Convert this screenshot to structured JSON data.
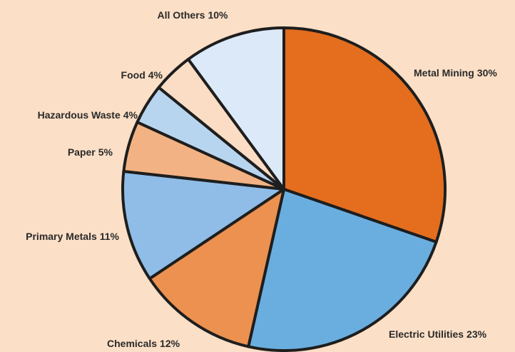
{
  "chart_data": {
    "type": "pie",
    "categories": [
      "Metal Mining",
      "Electric Utilities",
      "Chemicals",
      "Primary Metals",
      "Paper",
      "Hazardous Waste",
      "Food",
      "All Others"
    ],
    "values": [
      30,
      23,
      12,
      11,
      5,
      4,
      4,
      10
    ],
    "value_labels": [
      "30%",
      "23%",
      "12%",
      "11%",
      "5%",
      "4%",
      "4%",
      "10%"
    ],
    "colors": [
      "#e46e1e",
      "#6aaee0",
      "#ec9150",
      "#8fbde8",
      "#f3b283",
      "#b8d5f0",
      "#fbdcc4",
      "#dce9f8"
    ]
  }
}
